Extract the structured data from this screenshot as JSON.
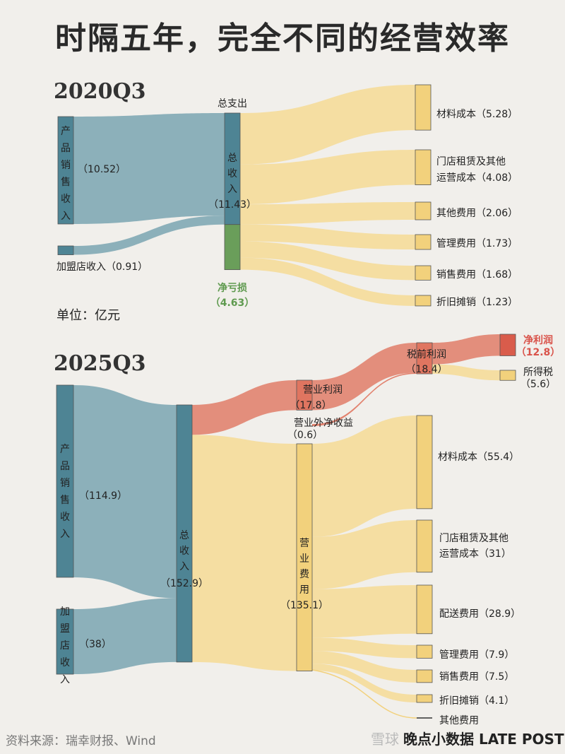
{
  "title": "时隔五年，完全不同的经营效率",
  "unit_label": "单位：亿元",
  "source": "资料来源：瑞幸财报、Wind",
  "credit": {
    "watermark": "雪球",
    "brand": "晚点小数据 LATE POST"
  },
  "colors": {
    "blue": "#4e8494",
    "blue_flow": "#7aa5b2",
    "yellow": "#f2d17c",
    "yellow_flow": "#f5dc9a",
    "green": "#6a9e5a",
    "red": "#e07560",
    "red_dark": "#d95c4b",
    "label_green": "#5f9a4f",
    "label_red": "#d9534a"
  },
  "chart_data": [
    {
      "type": "sankey",
      "title": "2020Q3",
      "unit": "亿元",
      "nodes": [
        {
          "id": "product",
          "label": "产品销售收入",
          "value": 10.52,
          "value_label": "（10.52）"
        },
        {
          "id": "franchise",
          "label": "加盟店收入",
          "value": 0.91,
          "value_label": "（0.91）"
        },
        {
          "id": "revenue",
          "label": "总收入",
          "value": 11.43,
          "value_label": "（11.43）"
        },
        {
          "id": "net_loss",
          "label": "净亏损",
          "value": 4.63,
          "value_label": "（4.63）"
        },
        {
          "id": "total_exp",
          "label": "总支出",
          "value": 16.06
        },
        {
          "id": "material",
          "label": "材料成本",
          "value": 5.28,
          "value_label": "（5.28）"
        },
        {
          "id": "rent",
          "label": "门店租赁及其他运营成本",
          "value": 4.08,
          "value_label": "（4.08）"
        },
        {
          "id": "other",
          "label": "其他费用",
          "value": 2.06,
          "value_label": "（2.06）"
        },
        {
          "id": "admin",
          "label": "管理费用",
          "value": 1.73,
          "value_label": "（1.73）"
        },
        {
          "id": "sales",
          "label": "销售费用",
          "value": 1.68,
          "value_label": "（1.68）"
        },
        {
          "id": "dep",
          "label": "折旧摊销",
          "value": 1.23,
          "value_label": "（1.23）"
        }
      ],
      "links": [
        {
          "source": "product",
          "target": "revenue",
          "value": 10.52
        },
        {
          "source": "franchise",
          "target": "revenue",
          "value": 0.91
        },
        {
          "source": "total_exp",
          "target": "material",
          "value": 5.28
        },
        {
          "source": "total_exp",
          "target": "rent",
          "value": 4.08
        },
        {
          "source": "total_exp",
          "target": "other",
          "value": 2.06
        },
        {
          "source": "total_exp",
          "target": "admin",
          "value": 1.73
        },
        {
          "source": "total_exp",
          "target": "sales",
          "value": 1.68
        },
        {
          "source": "total_exp",
          "target": "dep",
          "value": 1.23
        }
      ]
    },
    {
      "type": "sankey",
      "title": "2025Q3",
      "unit": "亿元",
      "nodes": [
        {
          "id": "product",
          "label": "产品销售收入",
          "value": 114.9,
          "value_label": "（114.9）"
        },
        {
          "id": "franchise",
          "label": "加盟店收入",
          "value": 38,
          "value_label": "（38）"
        },
        {
          "id": "revenue",
          "label": "总收入",
          "value": 152.9,
          "value_label": "（152.9）"
        },
        {
          "id": "op_profit",
          "label": "营业利润",
          "value": 17.8,
          "value_label": "（17.8）"
        },
        {
          "id": "nonop",
          "label": "营业外净收益",
          "value": 0.6,
          "value_label": "（0.6）"
        },
        {
          "id": "op_exp",
          "label": "营业费用",
          "value": 135.1,
          "value_label": "（135.1）"
        },
        {
          "id": "pretax",
          "label": "税前利润",
          "value": 18.4,
          "value_label": "（18.4）"
        },
        {
          "id": "net_profit",
          "label": "净利润",
          "value": 12.8,
          "value_label": "（12.8）"
        },
        {
          "id": "tax",
          "label": "所得税",
          "value": 5.6,
          "value_label": "（5.6）"
        },
        {
          "id": "material",
          "label": "材料成本",
          "value": 55.4,
          "value_label": "（55.4）"
        },
        {
          "id": "rent",
          "label": "门店租赁及其他运营成本",
          "value": 31,
          "value_label": "（31）"
        },
        {
          "id": "delivery",
          "label": "配送费用",
          "value": 28.9,
          "value_label": "（28.9）"
        },
        {
          "id": "admin",
          "label": "管理费用",
          "value": 7.9,
          "value_label": "（7.9）"
        },
        {
          "id": "sales",
          "label": "销售费用",
          "value": 7.5,
          "value_label": "（7.5）"
        },
        {
          "id": "dep",
          "label": "折旧摊销",
          "value": 4.1,
          "value_label": "（4.1）"
        },
        {
          "id": "other",
          "label": "其他费用"
        }
      ],
      "links": [
        {
          "source": "product",
          "target": "revenue",
          "value": 114.9
        },
        {
          "source": "franchise",
          "target": "revenue",
          "value": 38
        },
        {
          "source": "revenue",
          "target": "op_profit",
          "value": 17.8
        },
        {
          "source": "revenue",
          "target": "op_exp",
          "value": 135.1
        },
        {
          "source": "op_profit",
          "target": "pretax",
          "value": 17.8
        },
        {
          "source": "nonop",
          "target": "pretax",
          "value": 0.6
        },
        {
          "source": "pretax",
          "target": "net_profit",
          "value": 12.8
        },
        {
          "source": "pretax",
          "target": "tax",
          "value": 5.6
        },
        {
          "source": "op_exp",
          "target": "material",
          "value": 55.4
        },
        {
          "source": "op_exp",
          "target": "rent",
          "value": 31
        },
        {
          "source": "op_exp",
          "target": "delivery",
          "value": 28.9
        },
        {
          "source": "op_exp",
          "target": "admin",
          "value": 7.9
        },
        {
          "source": "op_exp",
          "target": "sales",
          "value": 7.5
        },
        {
          "source": "op_exp",
          "target": "dep",
          "value": 4.1
        },
        {
          "source": "op_exp",
          "target": "other"
        }
      ]
    }
  ]
}
